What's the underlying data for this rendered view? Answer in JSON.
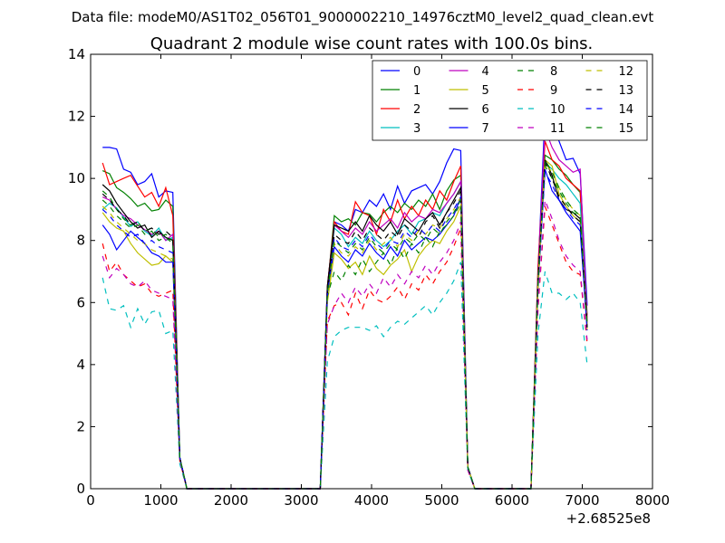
{
  "suptitle": "Data file: modeM0/AS1T02_056T01_9000002210_14976cztM0_level2_quad_clean.evt",
  "chart_data": {
    "type": "line",
    "title": "Quadrant 2 module wise count rates with 100.0s bins.",
    "xlabel": "",
    "ylabel": "",
    "xlim": [
      0,
      8000
    ],
    "ylim": [
      0,
      14
    ],
    "x_offset_label": "+2.68525e8",
    "x_ticks": [
      0,
      1000,
      2000,
      3000,
      4000,
      5000,
      6000,
      7000,
      8000
    ],
    "y_ticks": [
      0,
      2,
      4,
      6,
      8,
      10,
      12,
      14
    ],
    "legend": {
      "position": "top-right",
      "columns": 4
    },
    "x": [
      170,
      270,
      370,
      470,
      570,
      670,
      770,
      870,
      970,
      1070,
      1170,
      1270,
      1370,
      3270,
      3370,
      3470,
      3570,
      3670,
      3770,
      3870,
      3970,
      4070,
      4170,
      4270,
      4370,
      4470,
      4570,
      4670,
      4770,
      4870,
      4970,
      5070,
      5170,
      5270,
      5370,
      5470,
      6270,
      6370,
      6470,
      6570,
      6670,
      6770,
      6870,
      6970,
      7070
    ],
    "series": [
      {
        "name": "0",
        "color": "#0000ff",
        "dash": "solid",
        "values": [
          11.0,
          11.0,
          10.95,
          10.3,
          10.2,
          9.8,
          9.9,
          10.15,
          9.4,
          9.6,
          9.55,
          1.0,
          0,
          0,
          6.5,
          8.6,
          8.5,
          8.3,
          9.0,
          8.9,
          9.3,
          9.1,
          9.5,
          9.0,
          9.75,
          9.2,
          9.6,
          9.7,
          9.8,
          9.5,
          9.9,
          10.5,
          10.95,
          10.9,
          0.7,
          0,
          0,
          7.0,
          12.1,
          11.7,
          11.2,
          10.6,
          10.65,
          10.15,
          5.9
        ]
      },
      {
        "name": "1",
        "color": "#008000",
        "dash": "solid",
        "values": [
          10.25,
          10.15,
          9.7,
          9.55,
          9.35,
          9.1,
          9.2,
          8.95,
          9.0,
          9.3,
          9.1,
          1.0,
          0,
          0,
          6.4,
          8.8,
          8.6,
          8.7,
          8.5,
          8.9,
          8.85,
          8.6,
          8.9,
          9.1,
          8.9,
          9.2,
          9.0,
          9.3,
          9.1,
          9.5,
          9.0,
          9.6,
          9.95,
          10.1,
          0.7,
          0,
          0,
          6.9,
          10.75,
          10.6,
          10.3,
          10.1,
          9.8,
          9.55,
          5.6
        ]
      },
      {
        "name": "2",
        "color": "#ff0000",
        "dash": "solid",
        "values": [
          10.5,
          9.8,
          9.9,
          10.0,
          10.1,
          9.75,
          9.4,
          9.55,
          9.1,
          9.7,
          8.8,
          1.0,
          0,
          0,
          6.5,
          8.6,
          8.3,
          8.2,
          9.25,
          8.9,
          8.8,
          8.2,
          9.0,
          8.6,
          9.3,
          8.7,
          9.1,
          8.8,
          9.3,
          9.0,
          9.6,
          9.3,
          9.9,
          10.4,
          0.7,
          0,
          0,
          7.2,
          11.2,
          10.6,
          10.4,
          10.0,
          9.8,
          9.6,
          5.5
        ]
      },
      {
        "name": "3",
        "color": "#00bfbf",
        "dash": "solid",
        "values": [
          9.0,
          9.2,
          9.05,
          8.75,
          8.45,
          8.6,
          8.3,
          8.15,
          8.4,
          8.0,
          8.1,
          1.0,
          0,
          0,
          6.3,
          8.4,
          8.2,
          7.8,
          8.1,
          7.9,
          8.3,
          8.0,
          7.8,
          8.0,
          8.3,
          8.5,
          8.2,
          8.6,
          8.7,
          8.9,
          8.8,
          9.2,
          9.5,
          9.9,
          0.7,
          0,
          0,
          6.8,
          10.5,
          10.3,
          10.0,
          9.8,
          9.5,
          9.2,
          5.3
        ]
      },
      {
        "name": "4",
        "color": "#bf00bf",
        "dash": "solid",
        "values": [
          9.4,
          9.3,
          9.0,
          8.8,
          8.7,
          8.5,
          8.35,
          8.2,
          8.3,
          8.0,
          8.2,
          1.0,
          0,
          0,
          6.4,
          8.5,
          8.3,
          8.1,
          8.4,
          8.2,
          8.6,
          8.3,
          8.5,
          8.7,
          8.4,
          8.9,
          8.6,
          8.8,
          8.7,
          9.0,
          8.9,
          9.2,
          9.5,
          9.9,
          0.7,
          0,
          0,
          6.9,
          11.6,
          11.0,
          10.6,
          10.4,
          10.2,
          10.3,
          5.4
        ]
      },
      {
        "name": "5",
        "color": "#bfbf00",
        "dash": "solid",
        "values": [
          8.9,
          8.6,
          8.4,
          8.3,
          7.9,
          7.6,
          7.4,
          7.2,
          7.25,
          7.5,
          7.3,
          1.0,
          0,
          0,
          6.0,
          7.6,
          7.4,
          7.1,
          7.3,
          6.9,
          7.5,
          7.1,
          6.9,
          7.2,
          7.4,
          7.7,
          7.0,
          7.5,
          7.8,
          8.0,
          7.9,
          8.3,
          8.6,
          9.1,
          0.7,
          0,
          0,
          6.4,
          10.6,
          10.4,
          9.5,
          9.1,
          8.8,
          8.6,
          5.1
        ]
      },
      {
        "name": "6",
        "color": "#000000",
        "dash": "solid",
        "values": [
          9.8,
          9.6,
          9.2,
          8.9,
          8.6,
          8.4,
          8.5,
          8.1,
          8.3,
          8.1,
          8.0,
          1.0,
          0,
          0,
          6.5,
          8.5,
          8.4,
          8.3,
          8.6,
          8.3,
          8.8,
          8.5,
          8.3,
          8.6,
          8.2,
          8.7,
          8.5,
          8.3,
          8.7,
          8.9,
          8.5,
          8.9,
          9.3,
          9.7,
          0.7,
          0,
          0,
          6.8,
          10.6,
          10.1,
          9.3,
          9.0,
          8.9,
          8.7,
          5.3
        ]
      },
      {
        "name": "7",
        "color": "#0000ff",
        "dash": "solid",
        "values": [
          8.5,
          8.2,
          7.7,
          8.0,
          8.3,
          8.1,
          7.9,
          7.6,
          7.5,
          7.3,
          7.3,
          1.0,
          0,
          0,
          6.3,
          7.8,
          7.5,
          7.3,
          7.7,
          7.5,
          7.9,
          7.6,
          7.4,
          7.8,
          7.5,
          8.0,
          7.7,
          7.9,
          8.1,
          8.0,
          8.2,
          8.5,
          8.8,
          9.4,
          0.7,
          0,
          0,
          6.6,
          10.3,
          9.6,
          9.3,
          8.9,
          8.6,
          8.3,
          5.2
        ]
      },
      {
        "name": "8",
        "color": "#008000",
        "dash": "dashed",
        "values": [
          9.6,
          9.4,
          9.0,
          8.7,
          8.5,
          8.6,
          8.3,
          8.4,
          8.1,
          8.2,
          8.0,
          1.0,
          0,
          0,
          6.2,
          7.0,
          6.7,
          7.2,
          6.9,
          7.4,
          7.0,
          7.3,
          7.6,
          7.2,
          7.8,
          7.4,
          7.9,
          7.6,
          8.1,
          7.8,
          8.3,
          8.5,
          8.8,
          9.2,
          0.7,
          0,
          0,
          6.5,
          10.4,
          10.0,
          9.6,
          9.2,
          8.9,
          8.8,
          5.2
        ]
      },
      {
        "name": "9",
        "color": "#ff0000",
        "dash": "dashed",
        "values": [
          7.9,
          7.0,
          7.3,
          6.9,
          6.7,
          6.5,
          6.6,
          6.3,
          6.2,
          6.3,
          6.4,
          0.9,
          0,
          0,
          5.4,
          5.9,
          6.0,
          5.6,
          6.3,
          5.8,
          6.4,
          6.1,
          6.0,
          6.2,
          6.5,
          6.1,
          6.6,
          6.4,
          6.9,
          6.6,
          7.0,
          7.3,
          7.8,
          8.4,
          0.6,
          0,
          0,
          5.8,
          9.1,
          8.5,
          7.9,
          7.3,
          7.0,
          6.9,
          4.7
        ]
      },
      {
        "name": "10",
        "color": "#00bfbf",
        "dash": "dashed",
        "values": [
          6.8,
          5.8,
          5.75,
          5.9,
          5.2,
          5.8,
          5.3,
          5.7,
          5.75,
          5.0,
          5.1,
          0.8,
          0,
          0,
          4.1,
          4.9,
          5.1,
          5.2,
          5.2,
          5.2,
          5.1,
          5.25,
          4.9,
          5.2,
          5.4,
          5.3,
          5.5,
          5.7,
          5.9,
          5.6,
          6.0,
          6.3,
          6.7,
          7.3,
          0.6,
          0,
          0,
          5.0,
          7.0,
          6.3,
          6.3,
          6.1,
          6.3,
          6.0,
          4.0
        ]
      },
      {
        "name": "11",
        "color": "#bf00bf",
        "dash": "dashed",
        "values": [
          7.5,
          6.8,
          7.1,
          6.9,
          6.6,
          6.5,
          6.7,
          6.4,
          6.3,
          6.2,
          6.1,
          0.9,
          0,
          0,
          5.3,
          5.9,
          6.3,
          6.0,
          6.5,
          6.2,
          6.6,
          6.3,
          6.8,
          6.5,
          6.9,
          6.6,
          7.0,
          6.8,
          7.2,
          6.9,
          7.3,
          7.6,
          8.0,
          8.6,
          0.6,
          0,
          0,
          5.9,
          9.3,
          8.7,
          8.0,
          7.5,
          7.2,
          7.0,
          4.8
        ]
      },
      {
        "name": "12",
        "color": "#bfbf00",
        "dash": "dashed",
        "values": [
          9.1,
          8.9,
          8.6,
          8.4,
          8.2,
          8.0,
          7.9,
          7.7,
          7.6,
          7.5,
          7.4,
          1.0,
          0,
          0,
          6.1,
          7.9,
          7.6,
          7.5,
          7.8,
          7.6,
          8.0,
          7.7,
          7.9,
          8.1,
          7.8,
          8.2,
          8.0,
          8.3,
          8.2,
          8.5,
          8.4,
          8.7,
          9.0,
          9.4,
          0.7,
          0,
          0,
          6.7,
          10.5,
          10.2,
          9.7,
          9.3,
          9.0,
          8.8,
          5.3
        ]
      },
      {
        "name": "13",
        "color": "#000000",
        "dash": "dashed",
        "values": [
          9.5,
          9.3,
          9.0,
          8.8,
          8.5,
          8.6,
          8.3,
          8.4,
          8.2,
          8.3,
          8.1,
          1.0,
          0,
          0,
          6.3,
          8.2,
          8.0,
          7.9,
          8.3,
          8.0,
          8.4,
          8.2,
          8.0,
          8.3,
          8.1,
          8.5,
          8.3,
          8.1,
          8.6,
          8.8,
          8.4,
          8.9,
          9.2,
          9.6,
          0.7,
          0,
          0,
          6.7,
          10.5,
          10.0,
          9.4,
          9.1,
          8.8,
          8.6,
          5.2
        ]
      },
      {
        "name": "14",
        "color": "#0000ff",
        "dash": "dashed",
        "values": [
          9.0,
          8.8,
          8.5,
          8.3,
          8.1,
          8.2,
          7.9,
          8.0,
          7.8,
          7.7,
          7.6,
          1.0,
          0,
          0,
          6.2,
          8.1,
          7.8,
          7.7,
          8.0,
          7.8,
          8.2,
          7.9,
          7.7,
          8.0,
          7.9,
          8.3,
          8.1,
          8.4,
          8.2,
          8.5,
          8.3,
          8.7,
          9.0,
          9.4,
          0.7,
          0,
          0,
          6.6,
          10.2,
          9.8,
          9.3,
          9.0,
          8.7,
          8.5,
          5.1
        ]
      },
      {
        "name": "15",
        "color": "#008000",
        "dash": "dashed",
        "values": [
          9.3,
          9.1,
          8.8,
          8.6,
          8.4,
          8.5,
          8.2,
          8.3,
          8.0,
          8.1,
          7.9,
          1.0,
          0,
          0,
          6.3,
          8.0,
          7.8,
          7.6,
          7.9,
          7.7,
          8.1,
          7.8,
          7.6,
          7.9,
          7.7,
          8.1,
          7.9,
          8.2,
          8.0,
          8.4,
          8.2,
          8.6,
          8.9,
          9.3,
          0.7,
          0,
          0,
          6.7,
          10.6,
          10.2,
          9.7,
          9.3,
          9.0,
          8.8,
          5.3
        ]
      }
    ]
  }
}
